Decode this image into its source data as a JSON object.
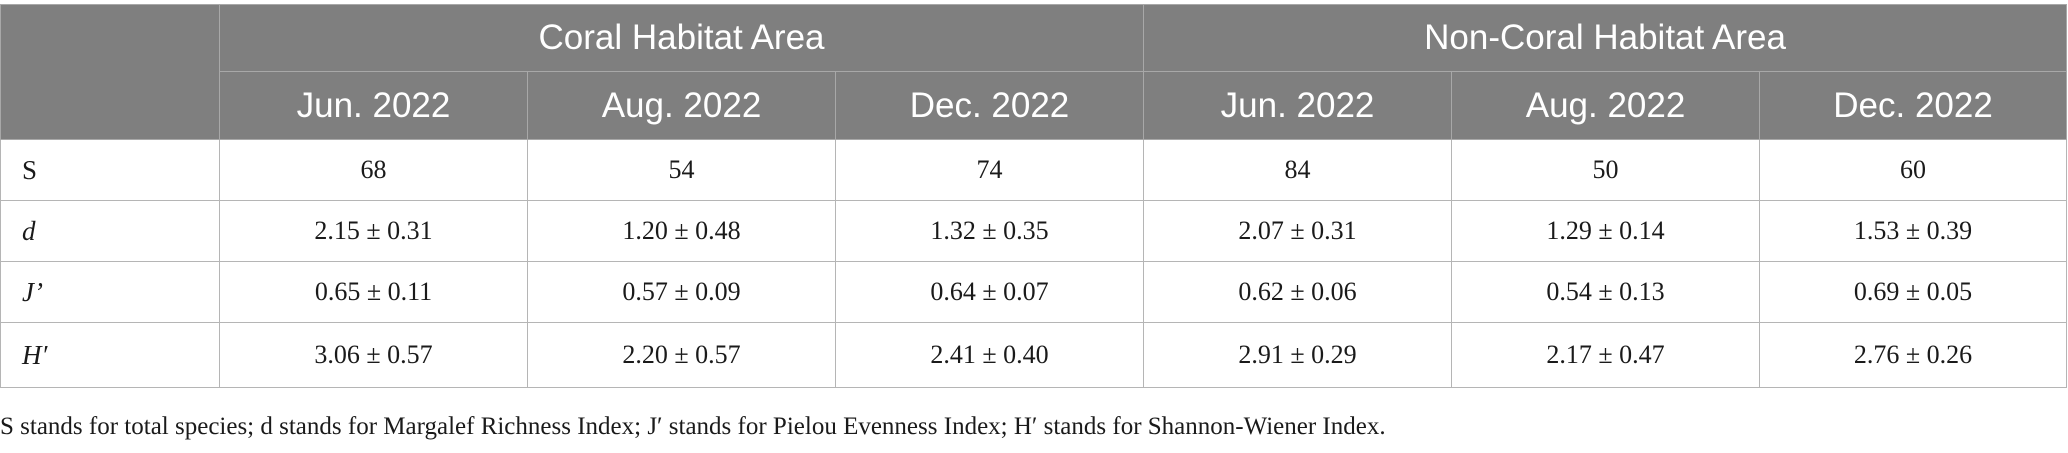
{
  "table": {
    "corner_label": "",
    "groups": [
      "Coral Habitat Area",
      "Non-Coral Habitat Area"
    ],
    "periods": [
      "Jun. 2022",
      "Aug. 2022",
      "Dec. 2022",
      "Jun. 2022",
      "Aug. 2022",
      "Dec. 2022"
    ],
    "rows": [
      {
        "label": "S",
        "italic": false,
        "values": [
          "68",
          "54",
          "74",
          "84",
          "50",
          "60"
        ]
      },
      {
        "label": "d",
        "italic": true,
        "values": [
          "2.15 ± 0.31",
          "1.20 ± 0.48",
          "1.32 ± 0.35",
          "2.07 ± 0.31",
          "1.29 ± 0.14",
          "1.53 ± 0.39"
        ]
      },
      {
        "label": "J’",
        "italic": true,
        "values": [
          "0.65 ± 0.11",
          "0.57 ± 0.09",
          "0.64 ± 0.07",
          "0.62 ± 0.06",
          "0.54 ± 0.13",
          "0.69 ± 0.05"
        ]
      },
      {
        "label": "H′",
        "italic": true,
        "values": [
          "3.06 ± 0.57",
          "2.20 ± 0.57",
          "2.41 ± 0.40",
          "2.91 ± 0.29",
          "2.17 ± 0.47",
          "2.76 ± 0.26"
        ]
      }
    ]
  },
  "footnote": "S stands for total species; d stands for Margalef Richness Index; J′ stands for Pielou Evenness Index; H′ stands for Shannon-Wiener Index."
}
